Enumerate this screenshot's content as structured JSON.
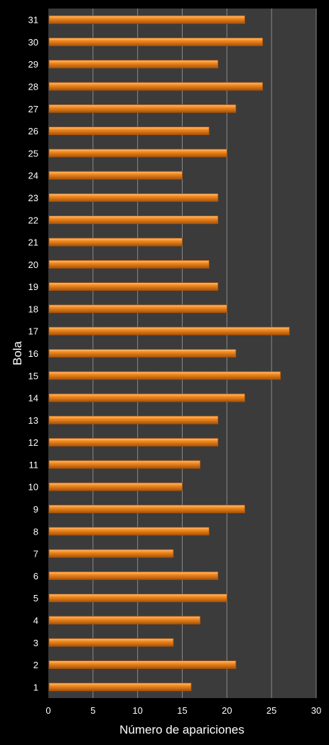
{
  "chart_data": {
    "type": "bar",
    "orientation": "horizontal",
    "xlabel": "Número de apariciones",
    "ylabel": "Bola",
    "xlim": [
      0,
      30
    ],
    "xticks": [
      0,
      5,
      10,
      15,
      20,
      25,
      30
    ],
    "grid": true,
    "categories": [
      "1",
      "2",
      "3",
      "4",
      "5",
      "6",
      "7",
      "8",
      "9",
      "10",
      "11",
      "12",
      "13",
      "14",
      "15",
      "16",
      "17",
      "18",
      "19",
      "20",
      "21",
      "22",
      "23",
      "24",
      "25",
      "26",
      "27",
      "28",
      "29",
      "30",
      "31"
    ],
    "values": [
      16,
      21,
      14,
      17,
      20,
      19,
      14,
      18,
      22,
      15,
      17,
      19,
      19,
      22,
      26,
      21,
      27,
      20,
      19,
      18,
      15,
      19,
      19,
      15,
      20,
      18,
      21,
      24,
      19,
      24,
      22
    ],
    "colors": {
      "bar": "#f28a1e",
      "bar_light": "#ffc07a",
      "bar_dark": "#a9520a",
      "plot_background": "#3b3b3b",
      "page_background": "#000000",
      "grid": "#8a8a8a",
      "text": "#ffffff"
    }
  }
}
